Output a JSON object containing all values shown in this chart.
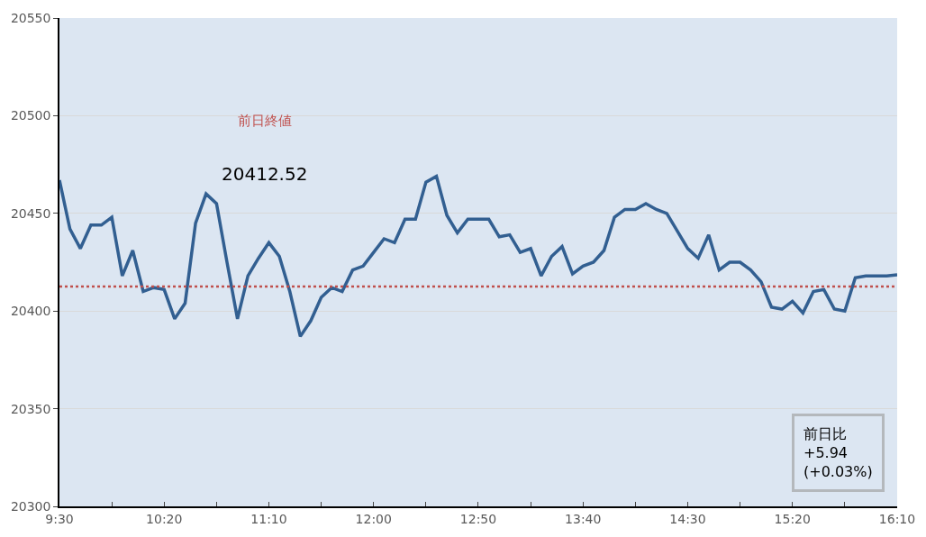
{
  "chart_data": {
    "type": "line",
    "x": [
      9.5,
      9.5833,
      9.6667,
      9.75,
      9.8333,
      9.9167,
      10.0,
      10.0833,
      10.1667,
      10.25,
      10.3333,
      10.4167,
      10.5,
      10.5833,
      10.6667,
      10.75,
      10.8333,
      10.9167,
      11.0,
      11.0833,
      11.1667,
      11.25,
      11.3333,
      11.4167,
      11.5,
      11.5833,
      11.6667,
      11.75,
      11.8333,
      11.9167,
      12.0,
      12.0833,
      12.1667,
      12.25,
      12.3333,
      12.4167,
      12.5,
      12.5833,
      12.6667,
      12.75,
      12.8333,
      12.9167,
      13.0,
      13.0833,
      13.1667,
      13.25,
      13.3333,
      13.4167,
      13.5,
      13.5833,
      13.6667,
      13.75,
      13.8333,
      13.9167,
      14.0,
      14.0833,
      14.1667,
      14.25,
      14.3333,
      14.4167,
      14.5,
      14.5833,
      14.6667,
      14.75,
      14.8333,
      14.9167,
      15.0,
      15.0833,
      15.1667,
      15.25,
      15.3333,
      15.4167,
      15.5,
      15.5833,
      15.6667,
      15.75,
      15.8333,
      15.9167,
      16.0,
      16.0833,
      16.1667
    ],
    "series": [
      {
        "color": "#325f91",
        "values": [
          20467,
          20442,
          20432,
          20444,
          20444,
          20448,
          20418,
          20431,
          20410,
          20412,
          20411,
          20396,
          20404,
          20445,
          20460,
          20455,
          20425,
          20396,
          20418,
          20427,
          20435,
          20428,
          20410,
          20387,
          20395,
          20407,
          20412,
          20410,
          20421,
          20423,
          20430,
          20437,
          20435,
          20447,
          20447,
          20466,
          20469,
          20449,
          20440,
          20447,
          20447,
          20447,
          20438,
          20439,
          20430,
          20432,
          20418,
          20428,
          20433,
          20419,
          20423,
          20425,
          20431,
          20448,
          20452,
          20452,
          20455,
          20452,
          20450,
          20441,
          20432,
          20427,
          20439,
          20421,
          20425,
          20425,
          20421,
          20415,
          20402,
          20401,
          20405,
          20399,
          20410,
          20411,
          20401,
          20400,
          20417,
          20418,
          20418,
          20418,
          20418.5
        ]
      }
    ],
    "xlim": [
      9.5,
      16.1667
    ],
    "xticks": [
      {
        "value": 9.5,
        "label": "9:30"
      },
      {
        "value": 9.9167,
        "label": null
      },
      {
        "value": 10.3333,
        "label": "10:20"
      },
      {
        "value": 10.75,
        "label": null
      },
      {
        "value": 11.1667,
        "label": "11:10"
      },
      {
        "value": 11.5833,
        "label": null
      },
      {
        "value": 12.0,
        "label": "12:00"
      },
      {
        "value": 12.4167,
        "label": null
      },
      {
        "value": 12.8333,
        "label": "12:50"
      },
      {
        "value": 13.25,
        "label": null
      },
      {
        "value": 13.6667,
        "label": "13:40"
      },
      {
        "value": 14.0833,
        "label": null
      },
      {
        "value": 14.5,
        "label": "14:30"
      },
      {
        "value": 14.9167,
        "label": null
      },
      {
        "value": 15.3333,
        "label": "15:20"
      },
      {
        "value": 15.75,
        "label": null
      },
      {
        "value": 16.1667,
        "label": "16:10"
      }
    ],
    "ylim": [
      20300,
      20550
    ],
    "yticks": [
      20300,
      20350,
      20400,
      20450,
      20500,
      20550
    ],
    "grid": "y",
    "ref_lines": [
      {
        "axis": "y",
        "value": 20412.52,
        "color": "#c0504d",
        "line_style": "dotted"
      }
    ],
    "annotations": [
      "前日終値",
      "20412.52",
      "前日比\n+5.94\n(+0.03%)"
    ]
  }
}
